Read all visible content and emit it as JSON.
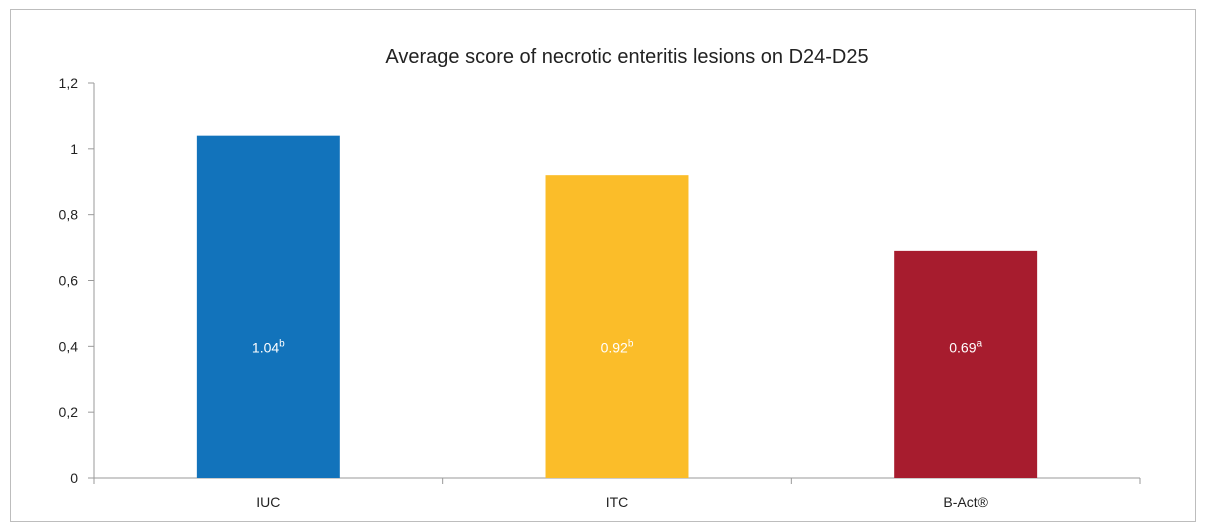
{
  "chart_data": {
    "type": "bar",
    "title": "Average score of necrotic enteritis lesions on D24-D25",
    "categories": [
      "IUC",
      "ITC",
      "B-Act®"
    ],
    "values": [
      1.04,
      0.92,
      0.69
    ],
    "data_labels": [
      {
        "value": "1.04",
        "superscript": "b"
      },
      {
        "value": "0.92",
        "superscript": "b"
      },
      {
        "value": "0.69",
        "superscript": "a"
      }
    ],
    "bar_colors": [
      "#1273bb",
      "#fbbd29",
      "#a71c2e"
    ],
    "ylim": [
      0,
      1.2
    ],
    "yticks": [
      "0",
      "0,2",
      "0,4",
      "0,6",
      "0,8",
      "1",
      "1,2"
    ],
    "xlabel": "",
    "ylabel": "",
    "grid": false,
    "legend": "none"
  }
}
